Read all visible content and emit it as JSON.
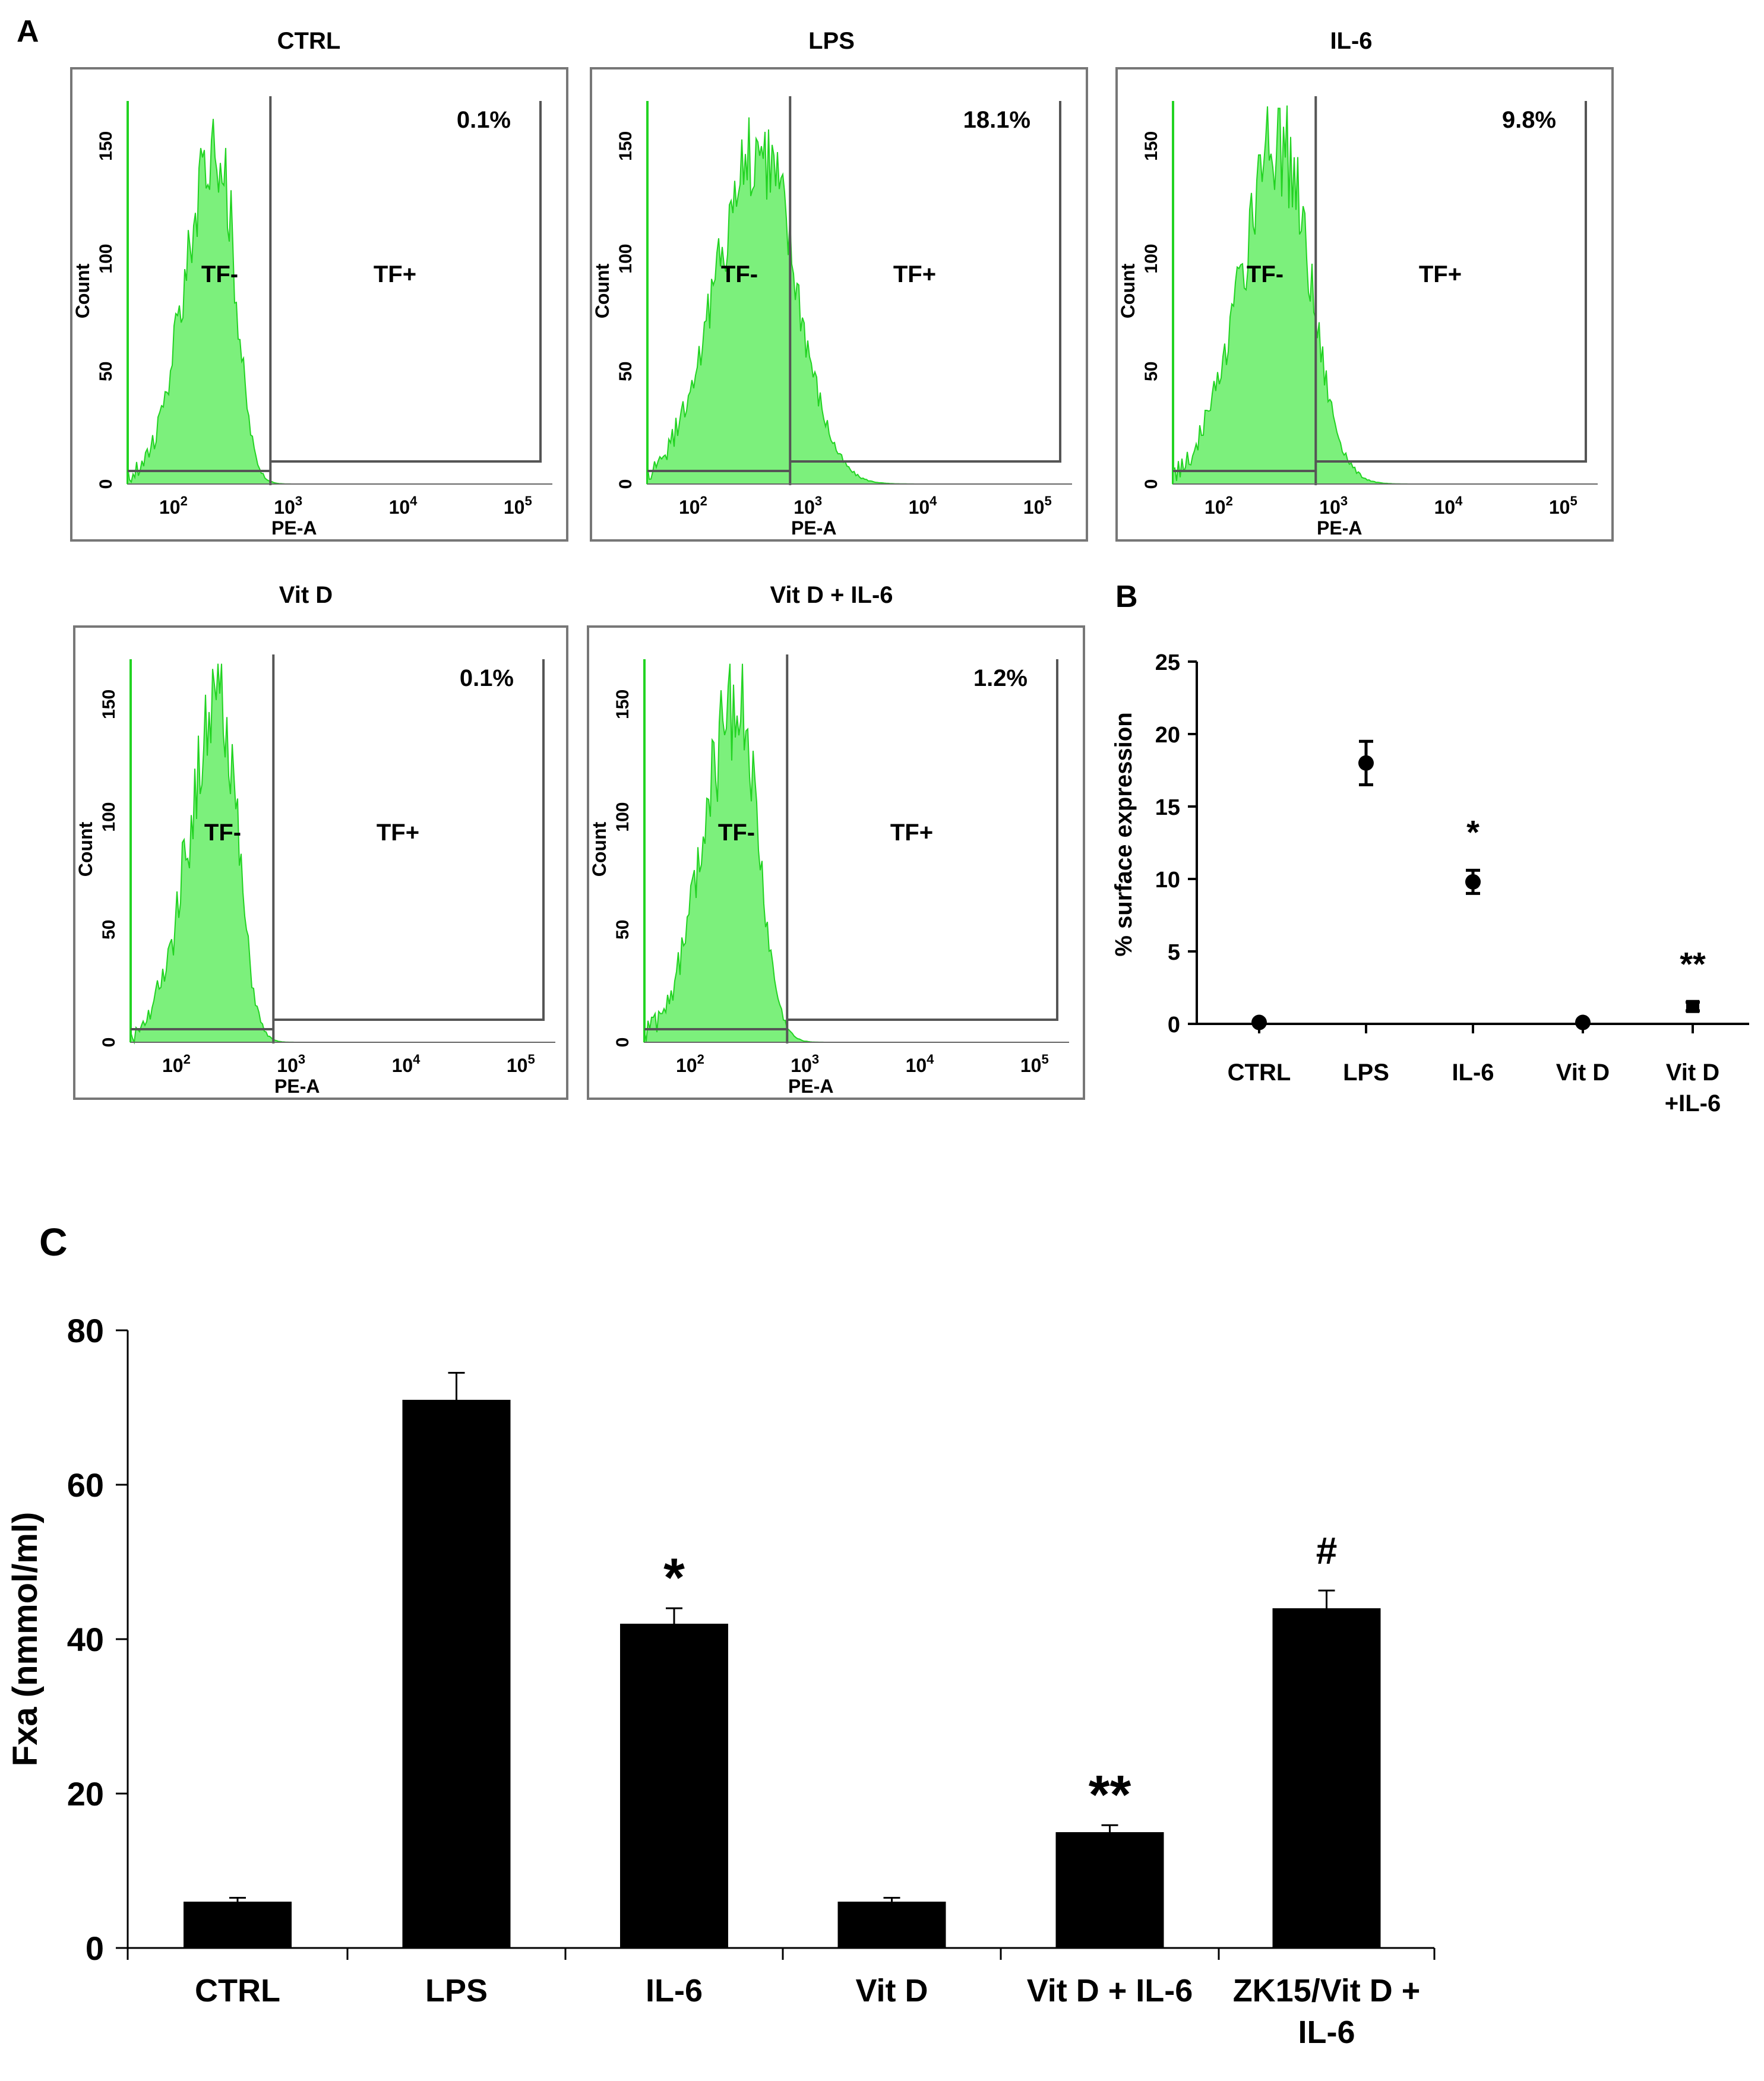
{
  "colors": {
    "histogram_fill": "#7CF07C",
    "histogram_edge": "#22D322",
    "panel_border": "#777777",
    "bar": "#000000"
  },
  "panel_labels": {
    "a": "A",
    "b": "B",
    "c": "C"
  },
  "chart_data": [
    {
      "type": "histogram",
      "panel": "A",
      "x_scale": "log",
      "xlabel": "PE-A",
      "ylabel": "Count",
      "xlim": [
        40,
        200000
      ],
      "ylim": [
        0,
        170
      ],
      "x_ticks": [
        {
          "base": "10",
          "exp": "2",
          "value": 100
        },
        {
          "base": "10",
          "exp": "3",
          "value": 1000
        },
        {
          "base": "10",
          "exp": "4",
          "value": 10000
        },
        {
          "base": "10",
          "exp": "5",
          "value": 100000
        }
      ],
      "y_ticks": [
        "0",
        "50",
        "100",
        "150"
      ],
      "gate_labels": [
        "TF-",
        "TF+"
      ],
      "gate_threshold": 700,
      "plots": [
        {
          "title": "CTRL",
          "percent": "0.1%",
          "peak": 245,
          "peak_count": 165,
          "spread": 0.28,
          "skew": 0.95
        },
        {
          "title": "LPS",
          "percent": "18.1%",
          "peak": 380,
          "peak_count": 162,
          "spread": 0.38,
          "skew": 1.5
        },
        {
          "title": "IL-6",
          "percent": "9.8%",
          "peak": 340,
          "peak_count": 163,
          "spread": 0.35,
          "skew": 1.35
        },
        {
          "title": "Vit D",
          "percent": "0.1%",
          "peak": 245,
          "peak_count": 165,
          "spread": 0.28,
          "skew": 0.95
        },
        {
          "title": "Vit D + IL-6",
          "percent": "1.2%",
          "peak": 260,
          "peak_count": 165,
          "spread": 0.3,
          "skew": 1.05
        }
      ]
    },
    {
      "type": "scatter",
      "panel": "B",
      "categories": [
        "CTRL",
        "LPS",
        "IL-6",
        "Vit D",
        "Vit D\n+IL-6"
      ],
      "values": [
        0.1,
        18.0,
        9.8,
        0.1,
        1.2
      ],
      "errors": [
        0.0,
        1.5,
        0.8,
        0.0,
        0.3
      ],
      "annotations": [
        "",
        "",
        "*",
        "",
        "**"
      ],
      "ylabel": "% surface expression",
      "xlabel": "",
      "ylim": [
        0,
        25
      ],
      "y_ticks": [
        0,
        5,
        10,
        15,
        20,
        25
      ]
    },
    {
      "type": "bar",
      "panel": "C",
      "categories": [
        "CTRL",
        "LPS",
        "IL-6",
        "Vit D",
        "Vit D + IL-6",
        "ZK15/Vit D +\nIL-6"
      ],
      "values": [
        6,
        71,
        42,
        6,
        15,
        44
      ],
      "errors": [
        0.5,
        3.5,
        2,
        0.5,
        0.9,
        2.3
      ],
      "annotations": [
        "",
        "",
        "*",
        "",
        "**",
        "#"
      ],
      "ylabel": "Fxa (nmmol/ml)",
      "xlabel": "",
      "ylim": [
        0,
        80
      ],
      "y_ticks": [
        0,
        20,
        40,
        60,
        80
      ]
    }
  ]
}
